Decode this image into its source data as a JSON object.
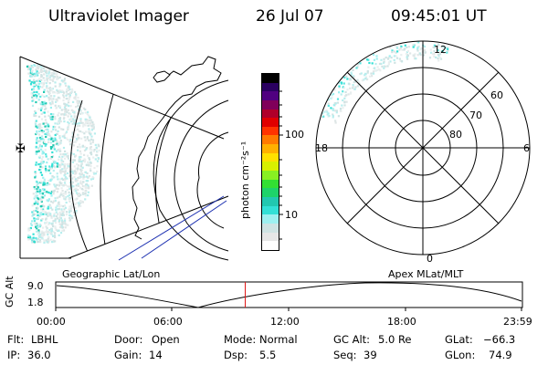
{
  "header": {
    "instrument": "Ultraviolet Imager",
    "date": "26 Jul 07",
    "time": "09:45:01 UT"
  },
  "colorbar": {
    "unit_label": "photon cm⁻²s⁻¹",
    "ticks": [
      "100",
      "10"
    ],
    "colors": [
      "#ffffff",
      "#e6e6e6",
      "#cfe3e3",
      "#9ef0f0",
      "#33e0d6",
      "#22c8b0",
      "#1ed36a",
      "#33e033",
      "#88f022",
      "#d8f000",
      "#ffe000",
      "#ffb000",
      "#ff7a00",
      "#ff3300",
      "#e00000",
      "#b0002a",
      "#80005a",
      "#500080",
      "#2a0060",
      "#000000"
    ]
  },
  "geo_map": {
    "label": "Geographic Lat/Lon",
    "marker": "✠"
  },
  "polar_plot": {
    "label": "Apex MLat/MLT",
    "mlt_labels": {
      "top": "12",
      "left": "18",
      "right": "6",
      "bottom": "0"
    },
    "lat_labels": [
      "60",
      "70",
      "80"
    ]
  },
  "altitude_plot": {
    "ylabel": "GC Alt",
    "yticks": [
      "9.0",
      "1.8"
    ],
    "xticks": [
      "00:00",
      "06:00",
      "12:00",
      "18:00",
      "23:59"
    ],
    "current_time_fraction": 0.406
  },
  "info": {
    "flt_label": "Flt:",
    "flt_value": "LBHL",
    "door_label": "Door:",
    "door_value": "Open",
    "mode_label": "Mode:",
    "mode_value": "Normal",
    "gcalt_label": "GC Alt:",
    "gcalt_value": "5.0 Re",
    "glat_label": "GLat:",
    "glat_value": "−66.3",
    "ip_label": "IP:",
    "ip_value": "36.0",
    "gain_label": "Gain:",
    "gain_value": "14",
    "dsp_label": "Dsp:",
    "dsp_value": "5.5",
    "seq_label": "Seq:",
    "seq_value": "39",
    "glon_label": "GLon:",
    "glon_value": "74.9"
  }
}
